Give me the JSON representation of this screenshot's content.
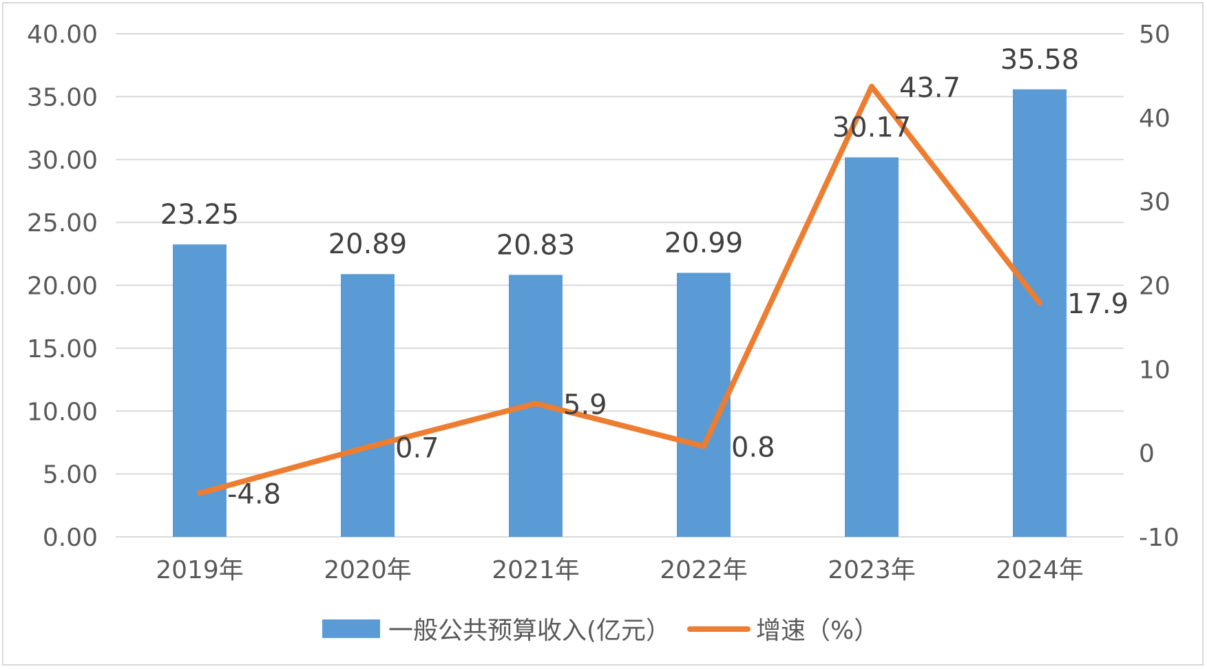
{
  "chart_data": {
    "type": "bar",
    "categories": [
      "2019年",
      "2020年",
      "2021年",
      "2022年",
      "2023年",
      "2024年"
    ],
    "series": [
      {
        "name": "一般公共预算收入(亿元）",
        "kind": "bar",
        "axis": "left",
        "color": "#5b9bd5",
        "values": [
          23.25,
          20.89,
          20.83,
          20.99,
          30.17,
          35.58
        ],
        "labels": [
          "23.25",
          "20.89",
          "20.83",
          "20.99",
          "30.17",
          "35.58"
        ]
      },
      {
        "name": "增速（%）",
        "kind": "line",
        "axis": "right",
        "color": "#ed7d31",
        "values": [
          -4.8,
          0.7,
          5.9,
          0.8,
          43.7,
          17.9
        ],
        "labels": [
          "-4.8",
          "0.7",
          "5.9",
          "0.8",
          "43.7",
          "17.9"
        ]
      }
    ],
    "y_left": {
      "min": 0,
      "max": 40,
      "ticks": [
        "0.00",
        "5.00",
        "10.00",
        "15.00",
        "20.00",
        "25.00",
        "30.00",
        "35.00",
        "40.00"
      ]
    },
    "y_right": {
      "min": -10,
      "max": 50,
      "ticks": [
        "-10",
        "0",
        "10",
        "20",
        "30",
        "40",
        "50"
      ]
    },
    "grid": true,
    "legend_position": "bottom"
  }
}
